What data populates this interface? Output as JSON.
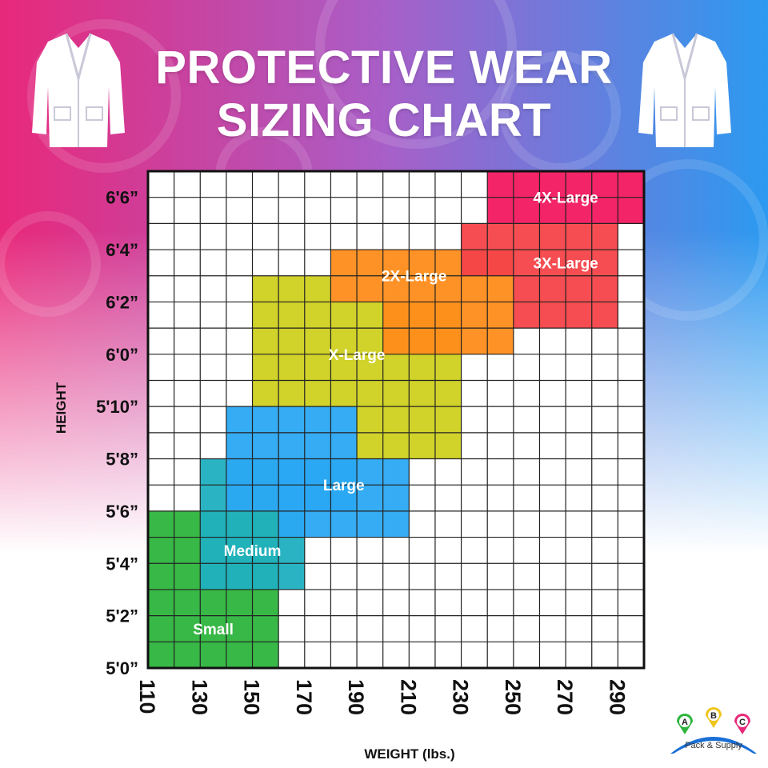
{
  "title": {
    "line1": "PROTECTIVE WEAR",
    "line2": "SIZING CHART"
  },
  "icons": {
    "left": "lab-coat-icon",
    "right": "lab-coat-icon"
  },
  "colors": {
    "bg_top_left": "#e8287a",
    "bg_top_mid": "#a85fc8",
    "bg_top_right": "#2b9af0",
    "small": "#2db43c",
    "medium": "#1fb0c0",
    "large": "#2aa8f2",
    "xlarge": "#cfd01f",
    "xxlarge": "#ff8c1a",
    "xxxlarge": "#f44348",
    "xxxxlarge": "#f2185f"
  },
  "logo": {
    "letters": [
      "A",
      "B",
      "C"
    ],
    "text": "Pack & Supply"
  },
  "chart_data": {
    "type": "heatmap",
    "title": "PROTECTIVE WEAR SIZING CHART",
    "xlabel": "WEIGHT (lbs.)",
    "ylabel": "HEIGHT",
    "x_ticks": [
      110,
      130,
      150,
      170,
      190,
      210,
      230,
      250,
      270,
      290
    ],
    "y_ticks": [
      "5'0”",
      "5'2”",
      "5'4”",
      "5'6”",
      "5'8”",
      "5'10”",
      "6'0”",
      "6'2”",
      "6'4”",
      "6'6”"
    ],
    "xlim": [
      110,
      300
    ],
    "ylim_inches": [
      60,
      79
    ],
    "grid": true,
    "regions": [
      {
        "name": "Small",
        "color": "#2db43c",
        "cells": [
          {
            "weight": [
              110,
              160
            ],
            "height_in": [
              60,
              66
            ]
          }
        ]
      },
      {
        "name": "Medium",
        "color": "#1fb0c0",
        "cells": [
          {
            "weight": [
              130,
              160
            ],
            "height_in": [
              63,
              68
            ]
          },
          {
            "weight": [
              160,
              170
            ],
            "height_in": [
              63,
              66
            ]
          }
        ]
      },
      {
        "name": "Large",
        "color": "#2aa8f2",
        "cells": [
          {
            "weight": [
              140,
              190
            ],
            "height_in": [
              66,
              70
            ]
          },
          {
            "weight": [
              160,
              210
            ],
            "height_in": [
              65,
              68
            ]
          }
        ]
      },
      {
        "name": "X-Large",
        "color": "#cfd01f",
        "cells": [
          {
            "weight": [
              150,
              230
            ],
            "height_in": [
              70,
              74
            ]
          },
          {
            "weight": [
              190,
              230
            ],
            "height_in": [
              68,
              70
            ]
          },
          {
            "weight": [
              150,
              180
            ],
            "height_in": [
              74,
              75
            ]
          }
        ]
      },
      {
        "name": "2X-Large",
        "color": "#ff8c1a",
        "cells": [
          {
            "weight": [
              180,
              250
            ],
            "height_in": [
              74,
              76
            ]
          },
          {
            "weight": [
              200,
              250
            ],
            "height_in": [
              72,
              74
            ]
          }
        ]
      },
      {
        "name": "3X-Large",
        "color": "#f44348",
        "cells": [
          {
            "weight": [
              230,
              290
            ],
            "height_in": [
              75,
              77
            ]
          },
          {
            "weight": [
              250,
              290
            ],
            "height_in": [
              73,
              75
            ]
          }
        ]
      },
      {
        "name": "4X-Large",
        "color": "#f2185f",
        "cells": [
          {
            "weight": [
              240,
              300
            ],
            "height_in": [
              77,
              79
            ]
          }
        ]
      }
    ]
  }
}
